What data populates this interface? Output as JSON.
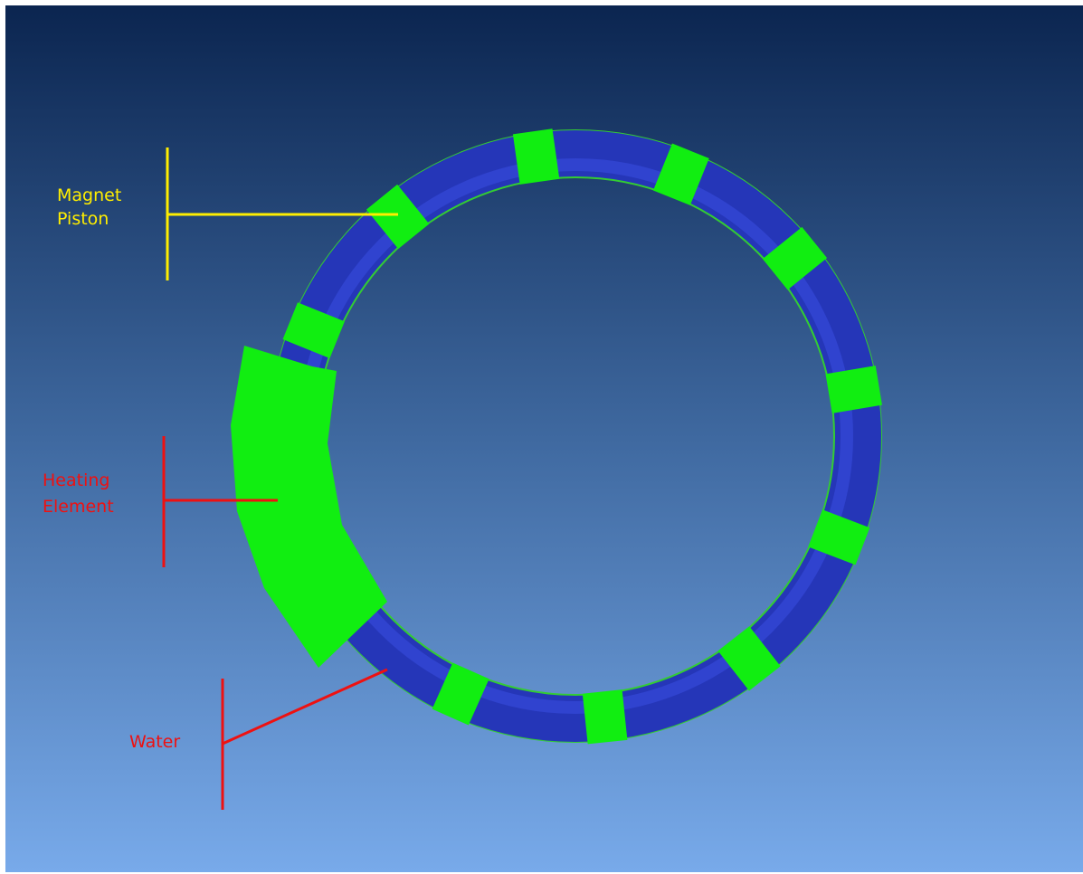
{
  "labels": {
    "magnet_piston": {
      "lines": [
        "Magnet",
        "Piston"
      ]
    },
    "heating_element": {
      "lines": [
        "Heating",
        "Element"
      ]
    },
    "water": {
      "lines": [
        "Water"
      ]
    }
  }
}
